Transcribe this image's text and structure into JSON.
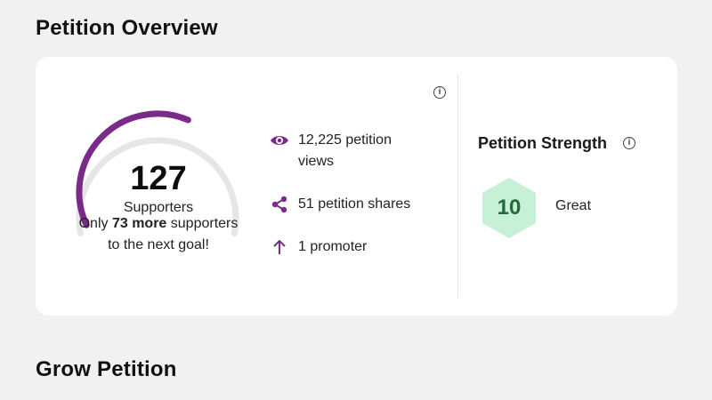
{
  "overview": {
    "title": "Petition Overview",
    "supporters": {
      "count": "127",
      "label": "Supporters",
      "goal_prefix": "Only ",
      "goal_highlight": "73 more",
      "goal_suffix": " supporters to the next goal!",
      "progress": 0.6
    },
    "stats": {
      "views": "12,225 petition views",
      "shares": "51 petition shares",
      "promoters": "1 promoter"
    },
    "strength": {
      "title": "Petition Strength",
      "value": "10",
      "rating": "Great"
    },
    "icons": {
      "info": "info-icon",
      "views": "eye-icon",
      "shares": "share-icon",
      "promoters": "arrow-up-icon"
    },
    "colors": {
      "accent": "#7a2a88",
      "gauge_track": "#e6e6e6",
      "strength_fill": "#c6f1d6",
      "strength_text": "#1f6b3a"
    }
  },
  "grow": {
    "title": "Grow Petition"
  }
}
